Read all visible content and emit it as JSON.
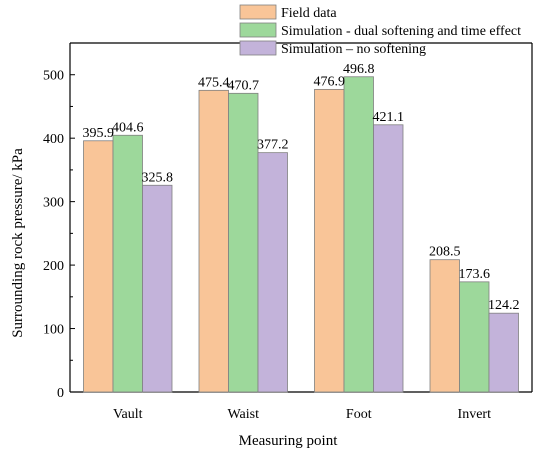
{
  "chart_data": {
    "type": "bar",
    "categories": [
      "Vault",
      "Waist",
      "Foot",
      "Invert"
    ],
    "series": [
      {
        "name": "Field data",
        "values": [
          395.9,
          475.4,
          476.9,
          208.5
        ],
        "color": "#F9C598"
      },
      {
        "name": "Simulation - dual softening and time effect",
        "values": [
          404.6,
          470.7,
          496.8,
          173.6
        ],
        "color": "#9DD89B"
      },
      {
        "name": "Simulation – no softening",
        "values": [
          325.8,
          377.2,
          421.1,
          124.2
        ],
        "color": "#C3B3DA"
      }
    ],
    "data_labels": [
      [
        "395.9",
        "404.6",
        "325.8"
      ],
      [
        "475.4",
        "470.7",
        "377.2"
      ],
      [
        "476.9",
        "496.8",
        "421.1"
      ],
      [
        "208.5",
        "173.6",
        "124.2"
      ]
    ],
    "xlabel": "Measuring point",
    "ylabel": "Surrounding rock pressure/ kPa",
    "ylim": [
      0,
      550
    ],
    "yticks": [
      "0",
      "100",
      "200",
      "300",
      "400",
      "500"
    ],
    "legend_position": "top-right",
    "grid": false,
    "bar_outline_color": "#808080",
    "axis_color": "#000000"
  }
}
